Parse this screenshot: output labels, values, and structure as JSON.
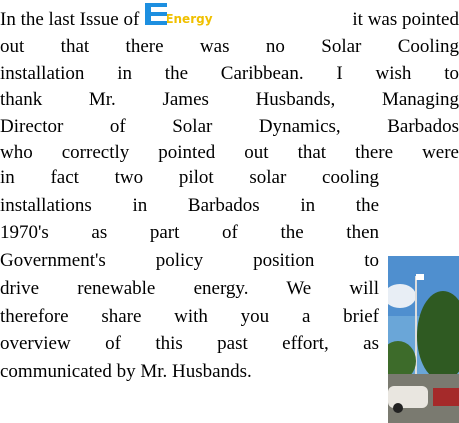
{
  "article": {
    "first_line_start": "In the last Issue of",
    "logo_text": "Energy",
    "first_line_end": "it was pointed",
    "wide_lines": [
      "out that there was no Solar Cooling",
      "installation in the Caribbean. I wish to",
      "thank Mr. James Husbands, Managing",
      "Director of Solar Dynamics, Barbados",
      "who correctly pointed out that there were"
    ],
    "narrow_lines": [
      "in fact two pilot solar cooling",
      "installations in Barbados in the",
      "1970's as part of the then",
      "Government's policy position to",
      "drive renewable energy. We will",
      "therefore share with you a brief",
      "overview of this past effort, as",
      "communicated by Mr. Husbands."
    ]
  }
}
